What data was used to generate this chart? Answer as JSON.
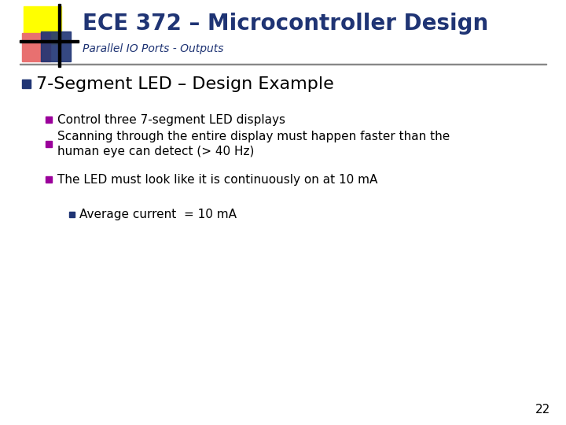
{
  "title": "ECE 372 – Microcontroller Design",
  "subtitle": "Parallel IO Ports - Outputs",
  "title_color": "#1f3474",
  "subtitle_color": "#1f3474",
  "bg_color": "#ffffff",
  "main_bullet": "7-Segment LED – Design Example",
  "main_bullet_color": "#000000",
  "main_bullet_marker_color": "#1f3474",
  "sub_bullets": [
    "Control three 7-segment LED displays",
    "Scanning through the entire display must happen faster than the\nhuman eye can detect (> 40 Hz)",
    "The LED must look like it is continuously on at 10 mA"
  ],
  "sub_bullet_marker_color": "#9b009b",
  "sub_sub_bullets": [
    "Average current  = 10 mA"
  ],
  "sub_sub_bullet_marker_color": "#1f3474",
  "page_number": "22",
  "divider_line_color": "#888888"
}
